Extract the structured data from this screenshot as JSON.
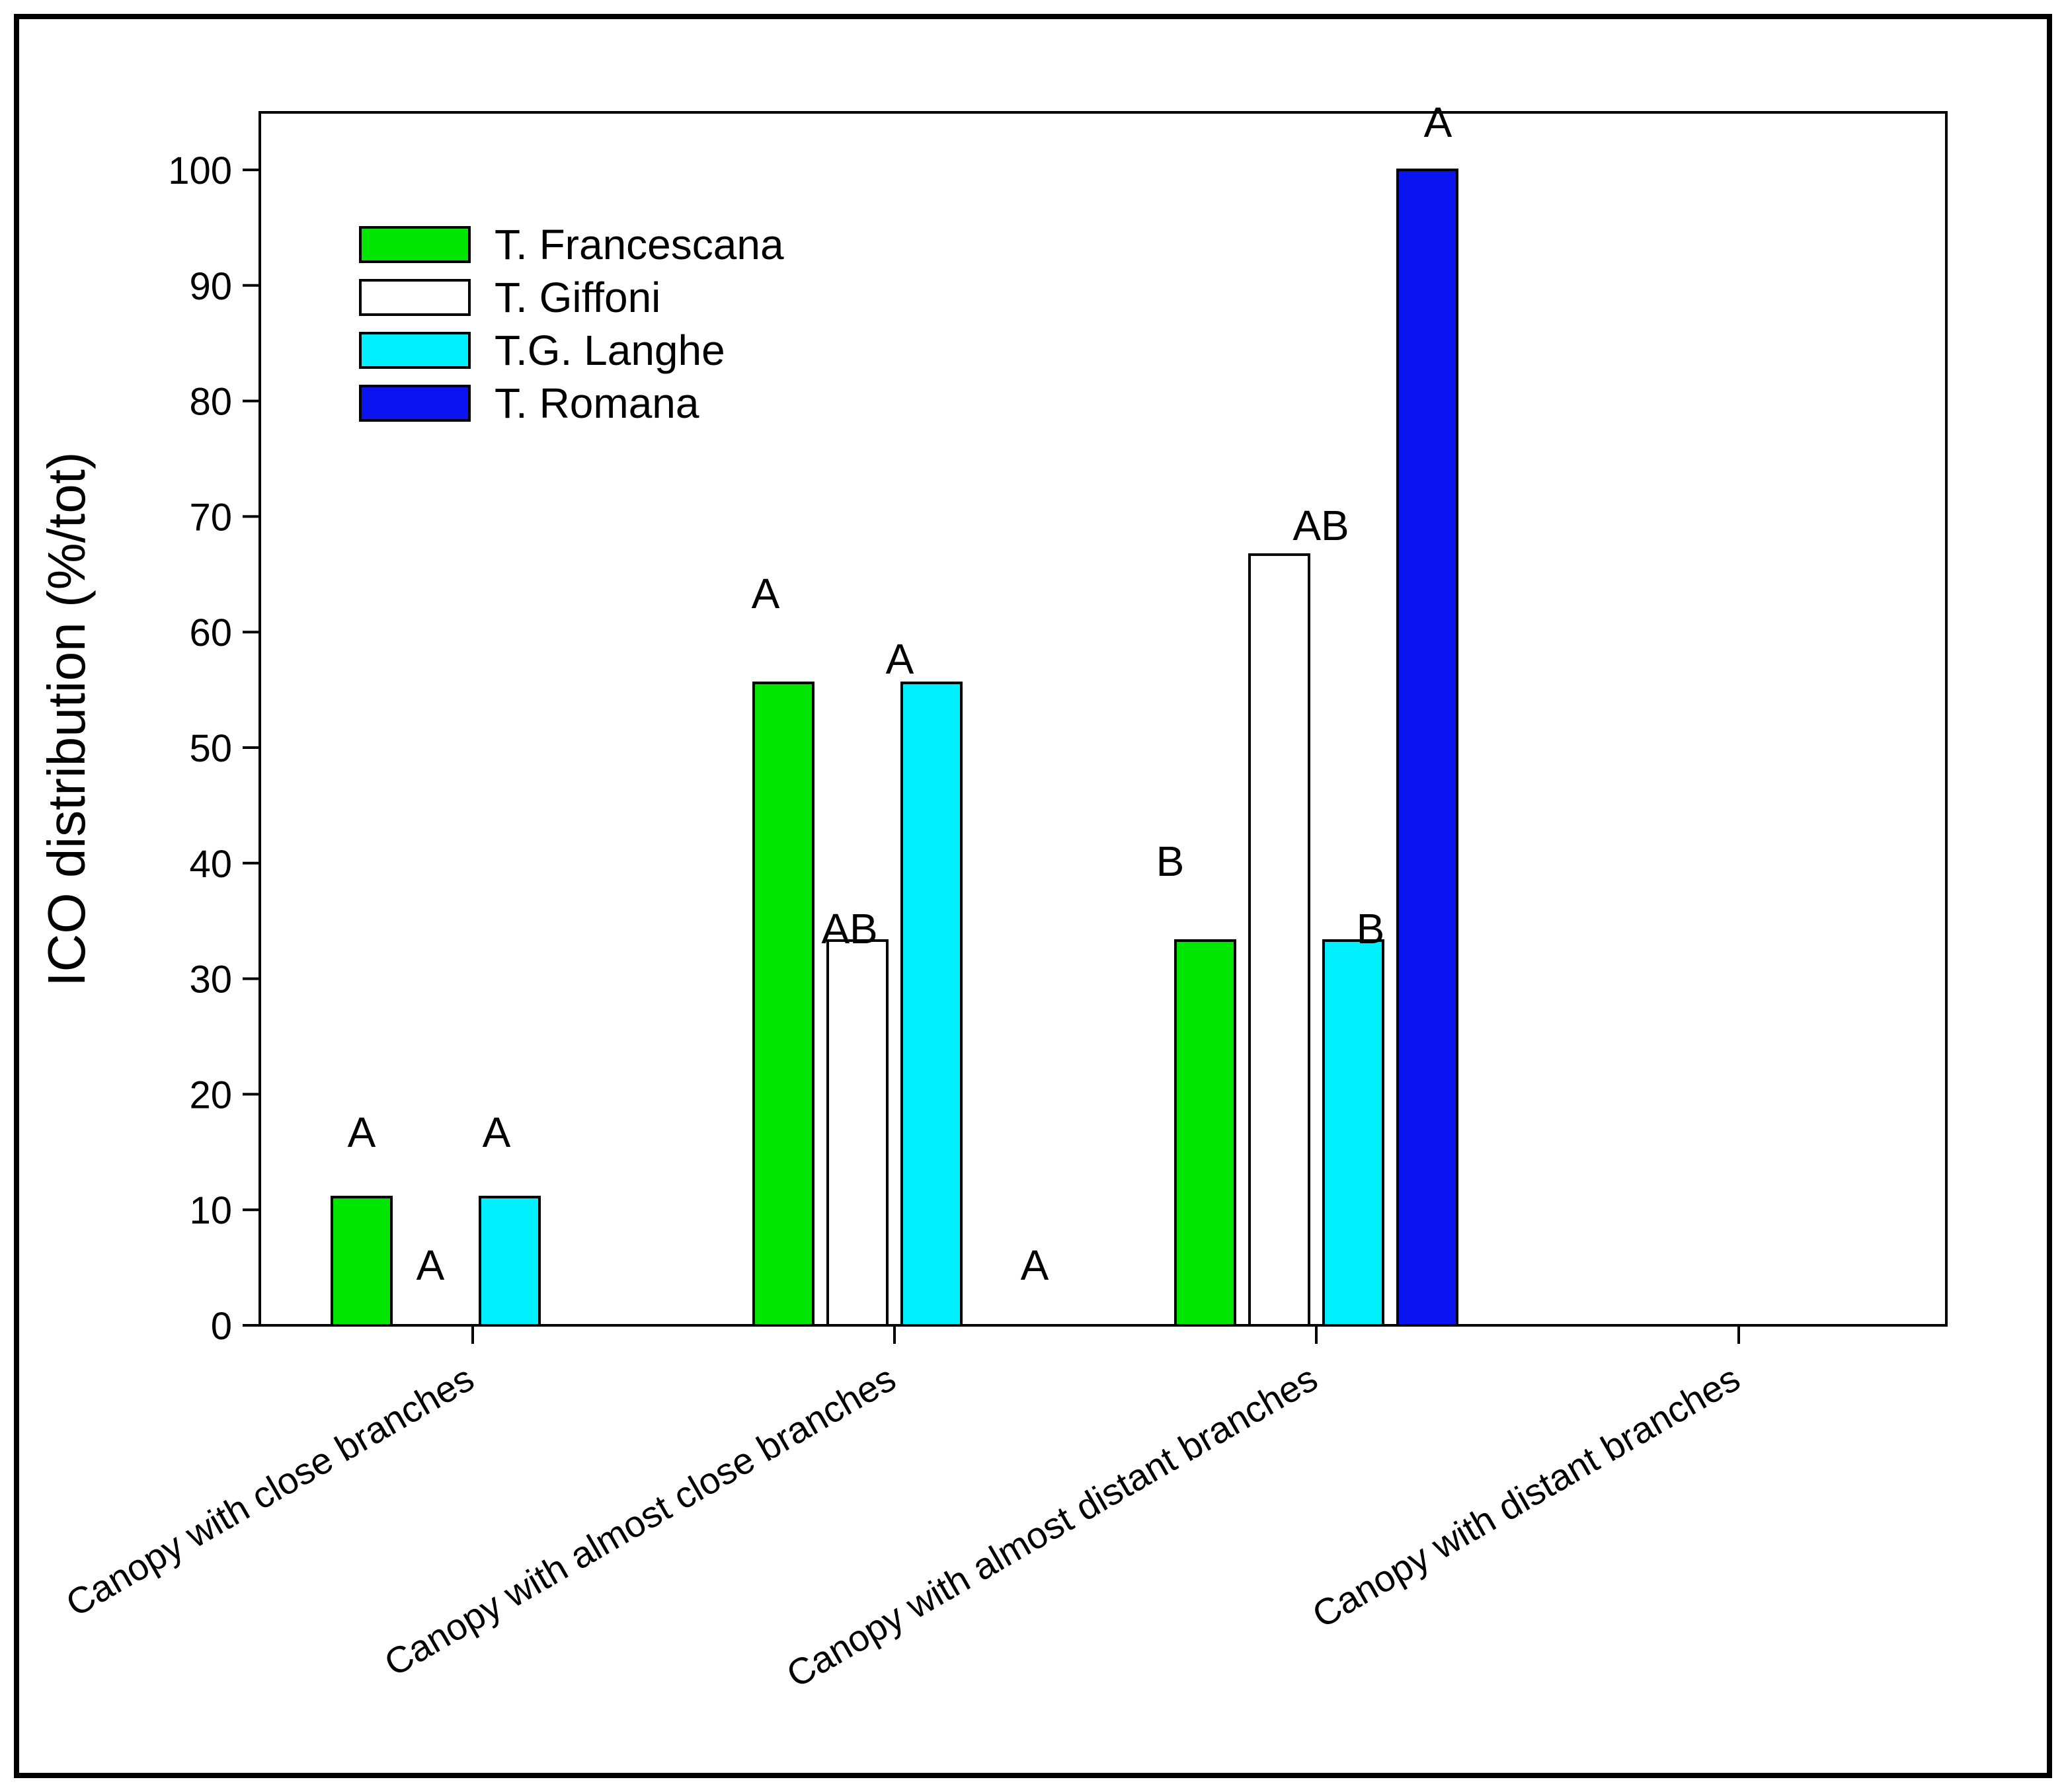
{
  "chart_data": {
    "type": "bar",
    "title": "",
    "xlabel": "",
    "ylabel": "ICO distribution (%/tot)",
    "ylim": [
      0,
      105
    ],
    "yticks": [
      0,
      10,
      20,
      30,
      40,
      50,
      60,
      70,
      80,
      90,
      100
    ],
    "grid": false,
    "legend_position": "top-left",
    "categories": [
      "Canopy with close branches",
      "Canopy with almost close branches",
      "Canopy with almost distant branches",
      "Canopy with distant branches"
    ],
    "series": [
      {
        "name": "T. Francescana",
        "color": "#00e600",
        "values": [
          11.1,
          55.6,
          33.3,
          0
        ],
        "letters": [
          "A",
          "A",
          "B",
          ""
        ]
      },
      {
        "name": "T. Giffoni",
        "color": "#ffffff",
        "values": [
          0,
          33.3,
          66.7,
          0
        ],
        "letters": [
          "A",
          "AB",
          "AB",
          ""
        ]
      },
      {
        "name": "T.G. Langhe",
        "color": "#00f0ff",
        "values": [
          11.1,
          55.6,
          33.3,
          0
        ],
        "letters": [
          "A",
          "A",
          "B",
          ""
        ]
      },
      {
        "name": "T. Romana",
        "color": "#0a14f0",
        "values": [
          0,
          0,
          100,
          0
        ],
        "letters": [
          "",
          "A",
          "A",
          ""
        ]
      }
    ]
  }
}
